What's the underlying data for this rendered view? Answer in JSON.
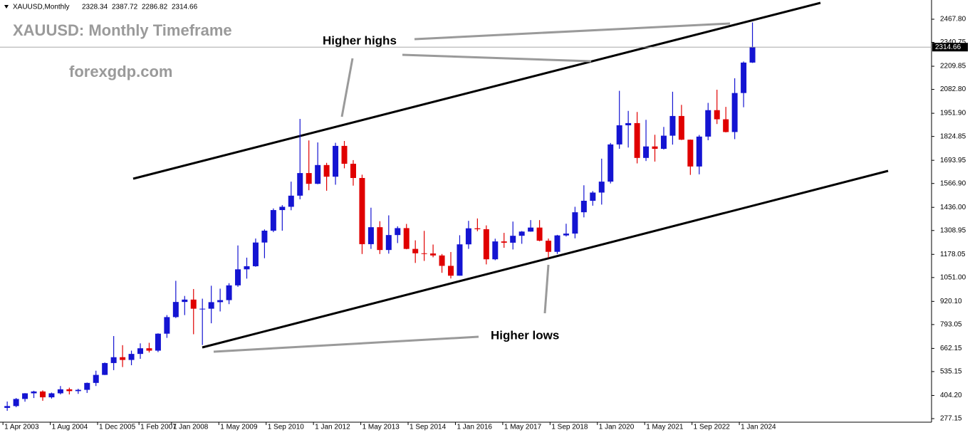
{
  "chart_data": {
    "type": "candlestick",
    "symbol": "XAUUSD,Monthly",
    "header_ohlc": [
      2328.34,
      2387.72,
      2286.82,
      2314.66
    ],
    "title": "XAUUSD: Monthly Timeframe",
    "subtitle": "forexgdp.com",
    "annotations": [
      "Higher highs",
      "Higher lows"
    ],
    "current_price": 2314.66,
    "up_color": "#1414d2",
    "down_color": "#e00000",
    "xlim": [
      "2003-03",
      "2029-06"
    ],
    "xticks": [
      {
        "value": "2003-04",
        "label": "1 Apr 2003"
      },
      {
        "value": "2004-08",
        "label": "1 Aug 2004"
      },
      {
        "value": "2005-12",
        "label": "1 Dec 2005"
      },
      {
        "value": "2007-02",
        "label": "1 Feb 2007"
      },
      {
        "value": "2008-01",
        "label": "1 Jan 2008"
      },
      {
        "value": "2009-05",
        "label": "1 May 2009"
      },
      {
        "value": "2010-09",
        "label": "1 Sep 2010"
      },
      {
        "value": "2012-01",
        "label": "1 Jan 2012"
      },
      {
        "value": "2013-05",
        "label": "1 May 2013"
      },
      {
        "value": "2014-09",
        "label": "1 Sep 2014"
      },
      {
        "value": "2016-01",
        "label": "1 Jan 2016"
      },
      {
        "value": "2017-05",
        "label": "1 May 2017"
      },
      {
        "value": "2018-09",
        "label": "1 Sep 2018"
      },
      {
        "value": "2020-01",
        "label": "1 Jan 2020"
      },
      {
        "value": "2021-05",
        "label": "1 May 2021"
      },
      {
        "value": "2022-09",
        "label": "1 Sep 2022"
      },
      {
        "value": "2024-01",
        "label": "1 Jan 2024"
      }
    ],
    "ylim": [
      257.6,
      2573.2
    ],
    "yticks": [
      277.15,
      {
        "value": 404.2,
        "label": "404.20"
      },
      535.15,
      662.15,
      793.05,
      {
        "value": 920.1,
        "label": "920.10"
      },
      {
        "value": 1051,
        "label": "1051.00"
      },
      1178.05,
      1308.95,
      {
        "value": 1436,
        "label": "1436.00"
      },
      {
        "value": 1566.9,
        "label": "1566.90"
      },
      1693.95,
      1824.85,
      {
        "value": 1951.9,
        "label": "1951.90"
      },
      {
        "value": 2082.8,
        "label": "2082.80"
      },
      2209.85,
      2340.75,
      {
        "value": 2467.8,
        "label": "2467.80"
      }
    ],
    "x": [
      "2003-04",
      "2003-07",
      "2003-10",
      "2004-01",
      "2004-04",
      "2004-07",
      "2004-10",
      "2005-01",
      "2005-04",
      "2005-07",
      "2005-10",
      "2006-01",
      "2006-04",
      "2006-07",
      "2006-10",
      "2007-01",
      "2007-04",
      "2007-07",
      "2007-10",
      "2008-01",
      "2008-04",
      "2008-07",
      "2008-10",
      "2009-01",
      "2009-04",
      "2009-07",
      "2009-10",
      "2010-01",
      "2010-04",
      "2010-07",
      "2010-10",
      "2011-01",
      "2011-04",
      "2011-07",
      "2011-10",
      "2012-01",
      "2012-04",
      "2012-07",
      "2012-10",
      "2013-01",
      "2013-04",
      "2013-07",
      "2013-10",
      "2014-01",
      "2014-04",
      "2014-07",
      "2014-10",
      "2015-01",
      "2015-04",
      "2015-07",
      "2015-10",
      "2016-01",
      "2016-04",
      "2016-07",
      "2016-10",
      "2017-01",
      "2017-04",
      "2017-07",
      "2017-10",
      "2018-01",
      "2018-04",
      "2018-07",
      "2018-10",
      "2019-01",
      "2019-04",
      "2019-07",
      "2019-10",
      "2020-01",
      "2020-04",
      "2020-07",
      "2020-10",
      "2021-01",
      "2021-04",
      "2021-07",
      "2021-10",
      "2022-01",
      "2022-04",
      "2022-07",
      "2022-10",
      "2023-01",
      "2023-04",
      "2023-07",
      "2023-10",
      "2024-01",
      "2024-04"
    ],
    "candles": [
      [
        336,
        371,
        320,
        346
      ],
      [
        346,
        390,
        340,
        385
      ],
      [
        385,
        417,
        370,
        416
      ],
      [
        416,
        430,
        390,
        426
      ],
      [
        426,
        432,
        375,
        394
      ],
      [
        394,
        420,
        387,
        416
      ],
      [
        416,
        456,
        410,
        438
      ],
      [
        438,
        447,
        410,
        428
      ],
      [
        428,
        441,
        413,
        435
      ],
      [
        435,
        475,
        418,
        473
      ],
      [
        473,
        540,
        456,
        517
      ],
      [
        517,
        585,
        516,
        582
      ],
      [
        582,
        730,
        543,
        614
      ],
      [
        614,
        680,
        560,
        599
      ],
      [
        599,
        650,
        570,
        632
      ],
      [
        632,
        690,
        605,
        663
      ],
      [
        663,
        693,
        640,
        650
      ],
      [
        650,
        745,
        642,
        743
      ],
      [
        743,
        845,
        720,
        834
      ],
      [
        834,
        1033,
        829,
        917
      ],
      [
        917,
        950,
        845,
        930
      ],
      [
        930,
        988,
        740,
        880
      ],
      [
        880,
        935,
        681,
        880
      ],
      [
        880,
        1006,
        800,
        916
      ],
      [
        916,
        990,
        865,
        927
      ],
      [
        927,
        1020,
        905,
        1008
      ],
      [
        1008,
        1227,
        1000,
        1096
      ],
      [
        1096,
        1160,
        1045,
        1113
      ],
      [
        1113,
        1265,
        1110,
        1243
      ],
      [
        1243,
        1315,
        1157,
        1308
      ],
      [
        1308,
        1430,
        1300,
        1421
      ],
      [
        1421,
        1448,
        1308,
        1439
      ],
      [
        1439,
        1577,
        1420,
        1500
      ],
      [
        1500,
        1921,
        1480,
        1624
      ],
      [
        1624,
        1803,
        1530,
        1565
      ],
      [
        1565,
        1792,
        1563,
        1668
      ],
      [
        1668,
        1680,
        1527,
        1604
      ],
      [
        1604,
        1790,
        1560,
        1773
      ],
      [
        1773,
        1800,
        1650,
        1675
      ],
      [
        1675,
        1695,
        1555,
        1597
      ],
      [
        1597,
        1615,
        1180,
        1234
      ],
      [
        1234,
        1434,
        1208,
        1327
      ],
      [
        1327,
        1360,
        1180,
        1202
      ],
      [
        1202,
        1392,
        1182,
        1284
      ],
      [
        1284,
        1332,
        1240,
        1322
      ],
      [
        1322,
        1345,
        1206,
        1208
      ],
      [
        1208,
        1255,
        1131,
        1184
      ],
      [
        1184,
        1307,
        1142,
        1183
      ],
      [
        1183,
        1232,
        1162,
        1172
      ],
      [
        1172,
        1180,
        1077,
        1115
      ],
      [
        1115,
        1191,
        1046,
        1061
      ],
      [
        1061,
        1283,
        1061,
        1233
      ],
      [
        1233,
        1362,
        1208,
        1321
      ],
      [
        1321,
        1375,
        1305,
        1316
      ],
      [
        1316,
        1337,
        1123,
        1151
      ],
      [
        1151,
        1264,
        1146,
        1249
      ],
      [
        1249,
        1296,
        1214,
        1242
      ],
      [
        1242,
        1358,
        1205,
        1280
      ],
      [
        1280,
        1306,
        1236,
        1303
      ],
      [
        1303,
        1366,
        1302,
        1325
      ],
      [
        1325,
        1366,
        1250,
        1253
      ],
      [
        1253,
        1265,
        1160,
        1192
      ],
      [
        1192,
        1285,
        1180,
        1282
      ],
      [
        1282,
        1346,
        1276,
        1292
      ],
      [
        1292,
        1439,
        1266,
        1409
      ],
      [
        1409,
        1557,
        1381,
        1472
      ],
      [
        1472,
        1525,
        1445,
        1517
      ],
      [
        1517,
        1703,
        1451,
        1577
      ],
      [
        1577,
        1789,
        1567,
        1781
      ],
      [
        1781,
        2075,
        1757,
        1886
      ],
      [
        1886,
        1965,
        1764,
        1898
      ],
      [
        1898,
        1959,
        1677,
        1707
      ],
      [
        1707,
        1916,
        1690,
        1770
      ],
      [
        1770,
        1834,
        1687,
        1757
      ],
      [
        1757,
        1877,
        1753,
        1829
      ],
      [
        1829,
        2070,
        1780,
        1937
      ],
      [
        1937,
        1998,
        1805,
        1807
      ],
      [
        1807,
        1808,
        1614,
        1660
      ],
      [
        1660,
        1833,
        1617,
        1824
      ],
      [
        1824,
        2009,
        1804,
        1969
      ],
      [
        1969,
        2081,
        1893,
        1919
      ],
      [
        1919,
        1987,
        1847,
        1849
      ],
      [
        1849,
        2144,
        1810,
        2063
      ],
      [
        2063,
        2236,
        1985,
        2230
      ],
      [
        2230,
        2450,
        2228,
        2314.66
      ]
    ]
  }
}
